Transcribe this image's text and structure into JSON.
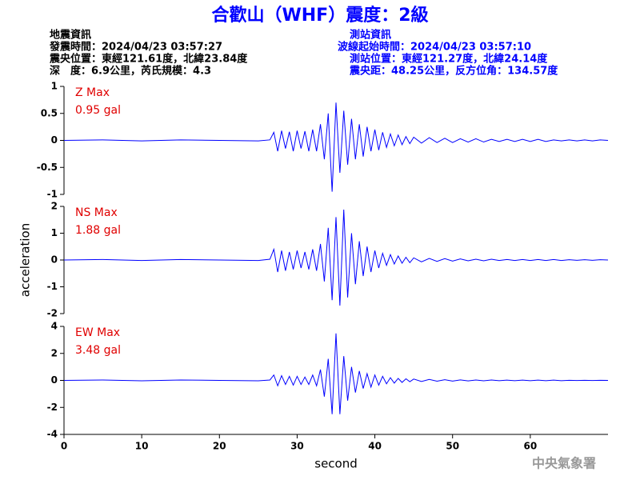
{
  "header": {
    "title": "合歡山（WHF）震度：2級",
    "left": [
      "地震資訊",
      "發震時間：2024/04/23 03:57:27",
      "震央位置：東經121.61度，北緯23.84度",
      "深　度：6.9公里，芮氏規模：4.3"
    ],
    "right": [
      "測站資訊",
      "波線起始時間：2024/04/23 03:57:10",
      "測站位置：東經121.27度，北緯24.14度",
      "震央距：48.25公里，反方位角：134.57度"
    ],
    "footer": "中央氣象署"
  },
  "chart_data": [
    {
      "type": "line",
      "label": "Z Max",
      "max_label": "0.95 gal",
      "color": "#0000ff",
      "x": [
        0,
        5,
        10,
        15,
        20,
        25,
        26.5,
        27,
        27.5,
        28,
        28.5,
        29,
        29.5,
        30,
        30.5,
        31,
        31.5,
        32,
        32.5,
        33,
        33.5,
        34,
        34.5,
        35,
        35.5,
        36,
        36.5,
        37,
        37.5,
        38,
        38.5,
        39,
        39.5,
        40,
        40.5,
        41,
        41.5,
        42,
        42.5,
        43,
        43.5,
        44,
        44.5,
        45,
        46,
        47,
        48,
        49,
        50,
        51,
        52,
        53,
        54,
        55,
        56,
        57,
        58,
        59,
        60,
        61,
        62,
        63,
        64,
        65,
        66,
        67,
        68,
        69,
        70
      ],
      "values": [
        0,
        0.01,
        -0.01,
        0.01,
        0,
        -0.01,
        0.01,
        0.15,
        -0.2,
        0.18,
        -0.15,
        0.16,
        -0.2,
        0.18,
        -0.15,
        0.17,
        -0.2,
        0.2,
        -0.2,
        0.3,
        -0.35,
        0.5,
        -0.95,
        0.7,
        -0.6,
        0.55,
        -0.45,
        0.4,
        -0.35,
        0.3,
        -0.3,
        0.25,
        -0.2,
        0.2,
        -0.18,
        0.15,
        -0.13,
        0.12,
        -0.1,
        0.1,
        -0.08,
        0.07,
        -0.06,
        0.06,
        -0.05,
        0.05,
        -0.04,
        0.04,
        -0.04,
        0.03,
        -0.03,
        0.03,
        -0.03,
        0.02,
        -0.02,
        0.02,
        -0.02,
        0.02,
        -0.02,
        0.02,
        -0.02,
        0.01,
        -0.01,
        0.01,
        -0.01,
        0.01,
        -0.01,
        0.01,
        0
      ],
      "xlim": [
        0,
        70
      ],
      "ylim": [
        -1,
        1
      ],
      "yticks": [
        -1,
        -0.5,
        0,
        0.5,
        1
      ]
    },
    {
      "type": "line",
      "label": "NS Max",
      "max_label": "1.88 gal",
      "color": "#0000ff",
      "ylabel": "acceleration",
      "x": [
        0,
        5,
        10,
        15,
        20,
        25,
        26.5,
        27,
        27.5,
        28,
        28.5,
        29,
        29.5,
        30,
        30.5,
        31,
        31.5,
        32,
        32.5,
        33,
        33.5,
        34,
        34.5,
        35,
        35.5,
        36,
        36.5,
        37,
        37.5,
        38,
        38.5,
        39,
        39.5,
        40,
        40.5,
        41,
        41.5,
        42,
        42.5,
        43,
        43.5,
        44,
        44.5,
        45,
        46,
        47,
        48,
        49,
        50,
        51,
        52,
        53,
        54,
        55,
        56,
        57,
        58,
        59,
        60,
        61,
        62,
        63,
        64,
        65,
        66,
        67,
        68,
        69,
        70
      ],
      "values": [
        0,
        0.02,
        -0.02,
        0.02,
        0,
        -0.02,
        0.03,
        0.4,
        -0.45,
        0.35,
        -0.4,
        0.3,
        -0.35,
        0.35,
        -0.3,
        0.3,
        -0.35,
        0.4,
        -0.4,
        0.6,
        -0.8,
        1.2,
        -1.5,
        1.6,
        -1.7,
        1.88,
        -1.4,
        1.0,
        -0.9,
        0.7,
        -0.6,
        0.5,
        -0.45,
        0.35,
        -0.3,
        0.25,
        -0.2,
        0.2,
        -0.15,
        0.15,
        -0.12,
        0.1,
        -0.1,
        0.08,
        -0.07,
        0.06,
        -0.05,
        0.05,
        -0.04,
        0.04,
        -0.03,
        0.03,
        -0.03,
        0.03,
        -0.02,
        0.02,
        -0.02,
        0.02,
        -0.02,
        0.02,
        -0.02,
        0.02,
        -0.02,
        0.01,
        -0.01,
        0.01,
        -0.01,
        0.01,
        0
      ],
      "xlim": [
        0,
        70
      ],
      "ylim": [
        -2,
        2
      ],
      "yticks": [
        -2,
        -1,
        0,
        1,
        2
      ]
    },
    {
      "type": "line",
      "label": "EW Max",
      "max_label": "3.48 gal",
      "color": "#0000ff",
      "xlabel": "second",
      "x": [
        0,
        5,
        10,
        15,
        20,
        25,
        26.5,
        27,
        27.5,
        28,
        28.5,
        29,
        29.5,
        30,
        30.5,
        31,
        31.5,
        32,
        32.5,
        33,
        33.5,
        34,
        34.5,
        35,
        35.5,
        36,
        36.5,
        37,
        37.5,
        38,
        38.5,
        39,
        39.5,
        40,
        40.5,
        41,
        41.5,
        42,
        42.5,
        43,
        43.5,
        44,
        44.5,
        45,
        46,
        47,
        48,
        49,
        50,
        51,
        52,
        53,
        54,
        55,
        56,
        57,
        58,
        59,
        60,
        61,
        62,
        63,
        64,
        65,
        66,
        67,
        68,
        69,
        70
      ],
      "values": [
        0,
        0.03,
        -0.03,
        0.03,
        0,
        -0.03,
        0.03,
        0.4,
        -0.4,
        0.35,
        -0.3,
        0.3,
        -0.35,
        0.3,
        -0.3,
        0.25,
        -0.3,
        0.4,
        -0.4,
        0.8,
        -1.2,
        1.6,
        -2.5,
        3.48,
        -2.5,
        1.8,
        -1.5,
        1.0,
        -0.9,
        0.7,
        -0.6,
        0.5,
        -0.5,
        0.4,
        -0.35,
        0.3,
        -0.25,
        0.2,
        -0.2,
        0.15,
        -0.15,
        0.12,
        -0.1,
        0.1,
        -0.08,
        0.07,
        -0.06,
        0.05,
        -0.05,
        0.04,
        -0.04,
        0.03,
        -0.03,
        0.03,
        -0.02,
        0.02,
        -0.02,
        0.02,
        -0.02,
        0.02,
        -0.02,
        0.02,
        -0.02,
        0.01,
        -0.01,
        0.01,
        -0.01,
        0.01,
        0
      ],
      "xlim": [
        0,
        70
      ],
      "ylim": [
        -4,
        4
      ],
      "yticks": [
        -4,
        -2,
        0,
        2,
        4
      ],
      "xticks": [
        0,
        10,
        20,
        30,
        40,
        50,
        60
      ]
    }
  ]
}
